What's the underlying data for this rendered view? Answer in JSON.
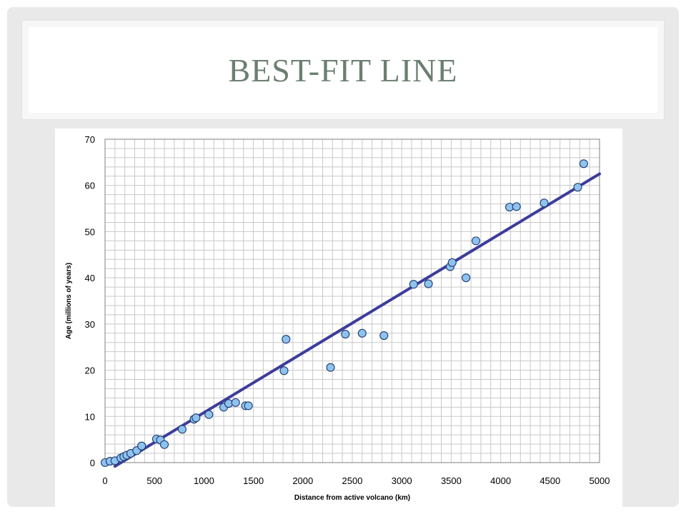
{
  "slide": {
    "title": "BEST-FIT LINE"
  },
  "chart_data": {
    "type": "scatter",
    "title": "",
    "xlabel": "Distance from active volcano (km)",
    "ylabel": "Age (millions of years)",
    "xlim": [
      0,
      5000
    ],
    "ylim": [
      0,
      70
    ],
    "x_ticks": [
      0,
      500,
      1000,
      1500,
      2000,
      2500,
      3000,
      3500,
      4000,
      4500,
      5000
    ],
    "y_ticks": [
      0,
      10,
      20,
      30,
      40,
      50,
      60,
      70
    ],
    "grid": true,
    "minor_grid_x_step": 100,
    "minor_grid_y_step": 2,
    "colors": {
      "points_fill": "#8ec3ef",
      "points_stroke": "#1f3a6e",
      "fit_line": "#3d3d9c",
      "grid": "#c8c8c8",
      "axis": "#808080"
    },
    "series": [
      {
        "points": [
          [
            0,
            0
          ],
          [
            50,
            0.3
          ],
          [
            100,
            0.4
          ],
          [
            160,
            1.0
          ],
          [
            190,
            1.3
          ],
          [
            220,
            1.6
          ],
          [
            260,
            2.0
          ],
          [
            320,
            2.6
          ],
          [
            370,
            3.6
          ],
          [
            520,
            5.1
          ],
          [
            560,
            4.9
          ],
          [
            600,
            3.9
          ],
          [
            780,
            7.2
          ],
          [
            900,
            9.4
          ],
          [
            920,
            9.7
          ],
          [
            1050,
            10.4
          ],
          [
            1200,
            12.0
          ],
          [
            1250,
            12.8
          ],
          [
            1320,
            13.0
          ],
          [
            1420,
            12.3
          ],
          [
            1450,
            12.3
          ],
          [
            1810,
            19.9
          ],
          [
            1830,
            26.7
          ],
          [
            2280,
            20.6
          ],
          [
            2430,
            27.8
          ],
          [
            2600,
            28.0
          ],
          [
            2820,
            27.5
          ],
          [
            3120,
            38.6
          ],
          [
            3270,
            38.7
          ],
          [
            3490,
            42.4
          ],
          [
            3510,
            43.3
          ],
          [
            3650,
            40.0
          ],
          [
            3750,
            48.0
          ],
          [
            4090,
            55.3
          ],
          [
            4160,
            55.4
          ],
          [
            4440,
            56.2
          ],
          [
            4780,
            59.6
          ],
          [
            4840,
            64.7
          ]
        ]
      }
    ],
    "fit_line": {
      "x": [
        100,
        5000
      ],
      "y": [
        -0.8,
        62.5
      ]
    }
  }
}
